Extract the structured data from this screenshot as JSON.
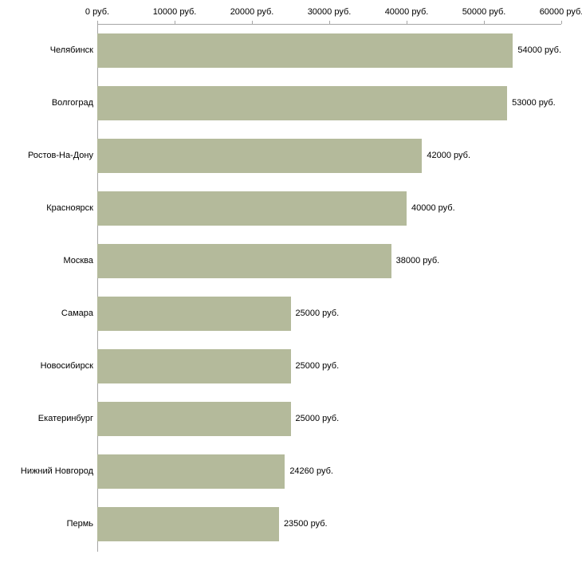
{
  "chart_data": {
    "type": "bar",
    "orientation": "horizontal",
    "title": "",
    "xlabel": "",
    "ylabel": "",
    "categories": [
      "Челябинск",
      "Волгоград",
      "Ростов-На-Дону",
      "Красноярск",
      "Москва",
      "Самара",
      "Новосибирск",
      "Екатеринбург",
      "Нижний Новгород",
      "Пермь"
    ],
    "values": [
      54000,
      53000,
      42000,
      40000,
      38000,
      25000,
      25000,
      25000,
      24260,
      23500
    ],
    "value_labels": [
      "54000 руб.",
      "53000 руб.",
      "42000 руб.",
      "40000 руб.",
      "38000 руб.",
      "25000 руб.",
      "25000 руб.",
      "25000 руб.",
      "24260 руб.",
      "23500 руб."
    ],
    "x_ticks": [
      0,
      10000,
      20000,
      30000,
      40000,
      50000,
      60000
    ],
    "x_tick_labels": [
      "0 руб.",
      "10000 руб.",
      "20000 руб.",
      "30000 руб.",
      "40000 руб.",
      "50000 руб.",
      "60000 руб."
    ],
    "xlim": [
      0,
      60000
    ],
    "grid": false,
    "legend": false,
    "colors": {
      "bar": "#b4ba9b",
      "axis": "#a6a6a6",
      "text": "#000000",
      "background": "#ffffff"
    }
  }
}
